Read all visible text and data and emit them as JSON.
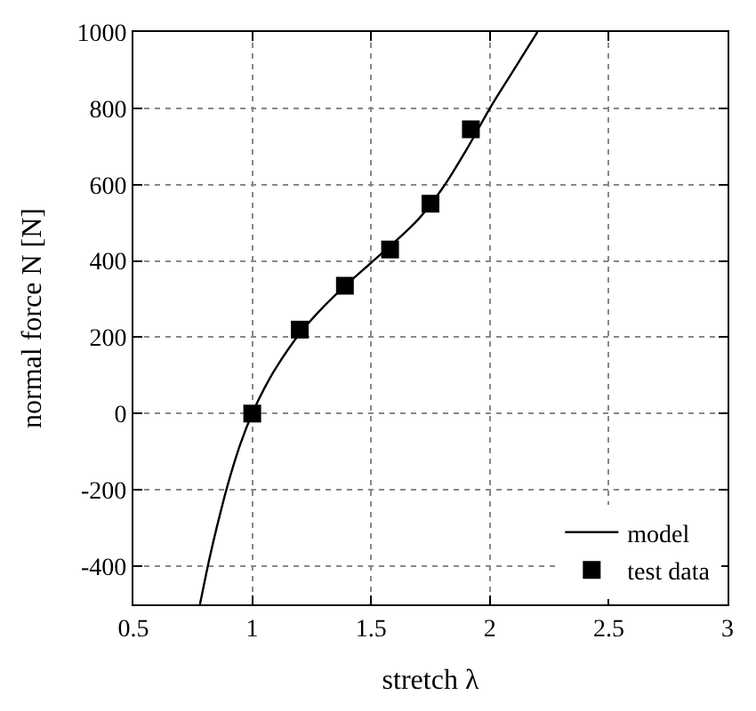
{
  "chart_data": {
    "type": "line",
    "xlabel": "stretch λ",
    "ylabel": "normal force N [N]",
    "xlim": [
      0.5,
      3
    ],
    "xticks": [
      0.5,
      1,
      1.5,
      2,
      2.5,
      3
    ],
    "ylim": [
      -500,
      1000
    ],
    "yticks": [
      -400,
      -200,
      0,
      200,
      400,
      600,
      800,
      1000
    ],
    "grid": true,
    "legend": "bottom right",
    "series": [
      {
        "name": "model",
        "color": "#000000",
        "marker": "none",
        "line_style": "solid",
        "x": [
          0.78,
          0.82,
          0.85,
          0.9,
          0.95,
          1.0,
          1.05,
          1.1,
          1.2,
          1.3,
          1.4,
          1.5,
          1.6,
          1.7,
          1.8,
          1.9,
          2.0,
          2.1,
          2.2
        ],
        "values": [
          -500,
          -380,
          -300,
          -180,
          -80,
          0,
          65,
          120,
          210,
          280,
          340,
          395,
          450,
          510,
          590,
          690,
          800,
          900,
          1000
        ]
      },
      {
        "name": "test data",
        "type": "scatter",
        "color": "#000000",
        "marker": "square",
        "x": [
          1.0,
          1.2,
          1.39,
          1.58,
          1.75,
          1.92
        ],
        "values": [
          0,
          220,
          335,
          430,
          550,
          745
        ]
      }
    ]
  }
}
